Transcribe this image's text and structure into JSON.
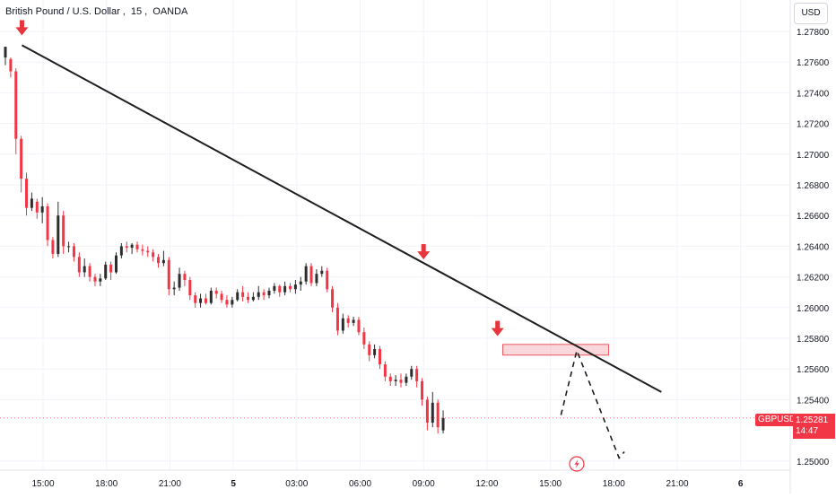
{
  "header": {
    "symbol_name": "British Pound / U.S. Dollar",
    "interval": "15",
    "exchange": "OANDA"
  },
  "currency_button": "USD",
  "price_tag": {
    "symbol": "GBPUSD",
    "price": "1.25281",
    "countdown": "14:47"
  },
  "colors": {
    "up": "#2d2d2d",
    "down": "#f23645",
    "trendline": "#1e1e1e",
    "zone": "#f5b7bd",
    "arrow": "#e8343c"
  },
  "icons": {
    "lightning": "lightning-icon"
  },
  "chart_data": {
    "type": "candlestick",
    "title": "British Pound / U.S. Dollar, 15, OANDA",
    "y_ticks": [
      "1.27800",
      "1.27600",
      "1.27400",
      "1.27200",
      "1.27000",
      "1.26800",
      "1.26600",
      "1.26400",
      "1.26200",
      "1.26000",
      "1.25800",
      "1.25600",
      "1.25400",
      "1.25000"
    ],
    "x_ticks": [
      "15:00",
      "18:00",
      "21:00",
      "5",
      "03:00",
      "06:00",
      "09:00",
      "12:00",
      "15:00",
      "18:00",
      "21:00",
      "6"
    ],
    "ylim": [
      1.2495,
      1.2792
    ],
    "last_price": 1.25281,
    "candles": [
      [
        1.2763,
        1.277,
        1.2758,
        1.277
      ],
      [
        1.2762,
        1.2763,
        1.275,
        1.2754
      ],
      [
        1.2754,
        1.2756,
        1.27,
        1.271
      ],
      [
        1.271,
        1.2712,
        1.2675,
        1.2684
      ],
      [
        1.2684,
        1.2688,
        1.266,
        1.2665
      ],
      [
        1.2665,
        1.2675,
        1.2663,
        1.2671
      ],
      [
        1.2669,
        1.2671,
        1.2658,
        1.2662
      ],
      [
        1.2662,
        1.2672,
        1.2655,
        1.2666
      ],
      [
        1.2666,
        1.2668,
        1.264,
        1.2644
      ],
      [
        1.2644,
        1.2646,
        1.2632,
        1.2635
      ],
      [
        1.2635,
        1.2669,
        1.2633,
        1.266
      ],
      [
        1.266,
        1.2663,
        1.2635,
        1.264
      ],
      [
        1.264,
        1.2643,
        1.2636,
        1.264
      ],
      [
        1.264,
        1.2642,
        1.263,
        1.2633
      ],
      [
        1.2633,
        1.2636,
        1.262,
        1.2623
      ],
      [
        1.2623,
        1.2632,
        1.262,
        1.2627
      ],
      [
        1.2627,
        1.2629,
        1.2617,
        1.262
      ],
      [
        1.262,
        1.2622,
        1.2614,
        1.2617
      ],
      [
        1.2617,
        1.2622,
        1.2614,
        1.2619
      ],
      [
        1.2619,
        1.263,
        1.2618,
        1.2628
      ],
      [
        1.2628,
        1.263,
        1.2618,
        1.2623
      ],
      [
        1.2623,
        1.2636,
        1.2622,
        1.2634
      ],
      [
        1.2634,
        1.2642,
        1.2632,
        1.264
      ],
      [
        1.264,
        1.2643,
        1.2636,
        1.2639
      ],
      [
        1.2639,
        1.2642,
        1.2635,
        1.2641
      ],
      [
        1.2641,
        1.2643,
        1.2636,
        1.2638
      ],
      [
        1.2638,
        1.2641,
        1.2634,
        1.2637
      ],
      [
        1.2637,
        1.264,
        1.2633,
        1.2636
      ],
      [
        1.2636,
        1.2638,
        1.263,
        1.2633
      ],
      [
        1.2633,
        1.2635,
        1.2626,
        1.2629
      ],
      [
        1.2629,
        1.2637,
        1.2627,
        1.2631
      ],
      [
        1.2631,
        1.2633,
        1.2608,
        1.2612
      ],
      [
        1.2612,
        1.2617,
        1.2608,
        1.2613
      ],
      [
        1.2613,
        1.2626,
        1.2611,
        1.2622
      ],
      [
        1.2622,
        1.2624,
        1.2614,
        1.2618
      ],
      [
        1.2618,
        1.262,
        1.2605,
        1.2608
      ],
      [
        1.2608,
        1.261,
        1.26,
        1.2603
      ],
      [
        1.2603,
        1.2609,
        1.26,
        1.2606
      ],
      [
        1.2606,
        1.2609,
        1.2602,
        1.2603
      ],
      [
        1.2603,
        1.2613,
        1.2602,
        1.2611
      ],
      [
        1.2611,
        1.2613,
        1.2606,
        1.2609
      ],
      [
        1.2609,
        1.2611,
        1.2603,
        1.2605
      ],
      [
        1.2605,
        1.2608,
        1.26,
        1.2602
      ],
      [
        1.2602,
        1.2607,
        1.26,
        1.2605
      ],
      [
        1.2605,
        1.2612,
        1.2604,
        1.261
      ],
      [
        1.261,
        1.2614,
        1.2604,
        1.2607
      ],
      [
        1.2607,
        1.261,
        1.2603,
        1.2605
      ],
      [
        1.2605,
        1.261,
        1.2604,
        1.2607
      ],
      [
        1.2607,
        1.2614,
        1.2605,
        1.261
      ],
      [
        1.261,
        1.2612,
        1.2605,
        1.2608
      ],
      [
        1.2608,
        1.2613,
        1.2606,
        1.2611
      ],
      [
        1.2611,
        1.2616,
        1.2609,
        1.2614
      ],
      [
        1.2614,
        1.2615,
        1.2607,
        1.261
      ],
      [
        1.261,
        1.2617,
        1.2608,
        1.2614
      ],
      [
        1.2614,
        1.2616,
        1.261,
        1.2612
      ],
      [
        1.2612,
        1.2618,
        1.2609,
        1.2615
      ],
      [
        1.2615,
        1.262,
        1.2611,
        1.2617
      ],
      [
        1.2617,
        1.2629,
        1.2615,
        1.2627
      ],
      [
        1.2627,
        1.2629,
        1.2614,
        1.2616
      ],
      [
        1.2616,
        1.2625,
        1.2614,
        1.2622
      ],
      [
        1.2622,
        1.2627,
        1.262,
        1.2624
      ],
      [
        1.2624,
        1.2626,
        1.261,
        1.2612
      ],
      [
        1.2612,
        1.2614,
        1.2597,
        1.26
      ],
      [
        1.26,
        1.2603,
        1.2582,
        1.2585
      ],
      [
        1.2585,
        1.2596,
        1.2583,
        1.2593
      ],
      [
        1.2593,
        1.2595,
        1.2587,
        1.259
      ],
      [
        1.259,
        1.2594,
        1.2588,
        1.2592
      ],
      [
        1.2592,
        1.2594,
        1.2582,
        1.2584
      ],
      [
        1.2584,
        1.2587,
        1.2573,
        1.2576
      ],
      [
        1.2576,
        1.2578,
        1.2565,
        1.2569
      ],
      [
        1.2569,
        1.2576,
        1.2567,
        1.2573
      ],
      [
        1.2573,
        1.2575,
        1.256,
        1.2563
      ],
      [
        1.2563,
        1.2565,
        1.2552,
        1.2555
      ],
      [
        1.2555,
        1.2557,
        1.2549,
        1.2552
      ],
      [
        1.2552,
        1.2556,
        1.2549,
        1.2553
      ],
      [
        1.2553,
        1.2557,
        1.2548,
        1.2551
      ],
      [
        1.2551,
        1.2557,
        1.2549,
        1.2555
      ],
      [
        1.2555,
        1.2562,
        1.2553,
        1.256
      ],
      [
        1.256,
        1.2562,
        1.2548,
        1.2552
      ],
      [
        1.2552,
        1.2554,
        1.2536,
        1.254
      ],
      [
        1.254,
        1.2542,
        1.252,
        1.2525
      ],
      [
        1.2525,
        1.2545,
        1.2522,
        1.2538
      ],
      [
        1.2538,
        1.254,
        1.2518,
        1.2522
      ],
      [
        1.252,
        1.2533,
        1.2518,
        1.2528
      ]
    ],
    "trendline": {
      "from": [
        "14:00",
        1.2771
      ],
      "to": [
        "20:15",
        1.2545
      ]
    },
    "resistance_zone": {
      "from": "12:45",
      "to": "17:45",
      "top": 1.2576,
      "bottom": 1.2569
    },
    "signal_arrows": [
      {
        "time": "14:00",
        "price": 1.2778
      },
      {
        "time": "09:00",
        "price": 1.2632
      },
      {
        "time": "12:30",
        "price": 1.2582
      }
    ],
    "projection_path": [
      [
        "15:30",
        1.253
      ],
      [
        "16:15",
        1.2572
      ],
      [
        "18:15",
        1.2502
      ],
      [
        "18:30",
        1.2506
      ]
    ]
  }
}
